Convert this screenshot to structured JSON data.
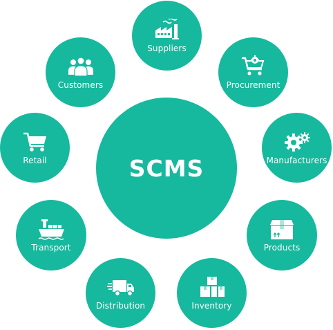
{
  "colors": {
    "accent": "#16b99d",
    "text": "#ffffff"
  },
  "hub": {
    "title": "SCMS"
  },
  "nodes": [
    {
      "key": "suppliers",
      "label": "Suppliers",
      "icon": "factory-icon"
    },
    {
      "key": "procurement",
      "label": "Procurement",
      "icon": "cart-gear-icon"
    },
    {
      "key": "manufacturers",
      "label": "Manufacturers",
      "icon": "gears-icon"
    },
    {
      "key": "products",
      "label": "Products",
      "icon": "box-icon"
    },
    {
      "key": "inventory",
      "label": "Inventory",
      "icon": "boxes-icon"
    },
    {
      "key": "distribution",
      "label": "Distribution",
      "icon": "truck-icon"
    },
    {
      "key": "transport",
      "label": "Transport",
      "icon": "ship-icon"
    },
    {
      "key": "retail",
      "label": "Retail",
      "icon": "cart-icon"
    },
    {
      "key": "customers",
      "label": "Customers",
      "icon": "people-icon"
    }
  ]
}
